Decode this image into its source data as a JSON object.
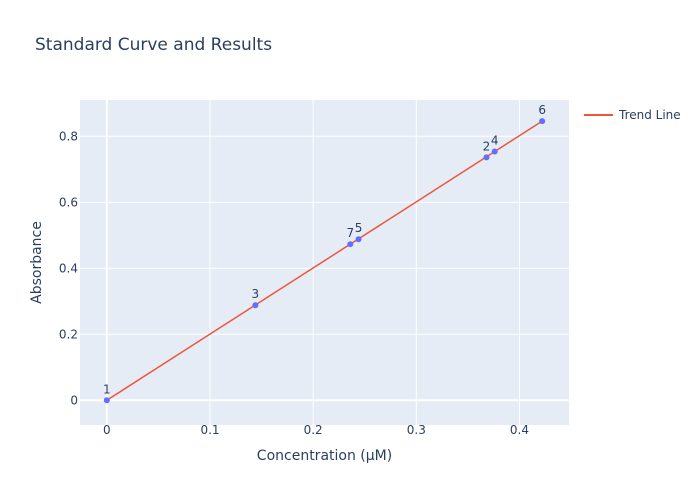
{
  "chart_data": {
    "type": "scatter",
    "title": "Standard Curve and Results",
    "xlabel": "Concentration (µM)",
    "ylabel": "Absorbance",
    "xlim": [
      -0.026,
      0.448
    ],
    "ylim": [
      -0.075,
      0.91
    ],
    "xticks": [
      0,
      0.1,
      0.2,
      0.3,
      0.4
    ],
    "xtick_labels": [
      "0",
      "0.1",
      "0.2",
      "0.3",
      "0.4"
    ],
    "yticks": [
      0,
      0.2,
      0.4,
      0.6,
      0.8
    ],
    "ytick_labels": [
      "0",
      "0.2",
      "0.4",
      "0.6",
      "0.8"
    ],
    "grid": true,
    "legend_position": "top-right",
    "series": [
      {
        "name": "",
        "mode": "markers+text",
        "color": "#636efa",
        "points": [
          {
            "label": "1",
            "x": 0.0,
            "y": 0.0
          },
          {
            "label": "3",
            "x": 0.144,
            "y": 0.288
          },
          {
            "label": "7",
            "x": 0.236,
            "y": 0.473
          },
          {
            "label": "5",
            "x": 0.244,
            "y": 0.488
          },
          {
            "label": "2",
            "x": 0.368,
            "y": 0.736
          },
          {
            "label": "4",
            "x": 0.376,
            "y": 0.754
          },
          {
            "label": "6",
            "x": 0.422,
            "y": 0.846
          }
        ]
      },
      {
        "name": "Trend Line",
        "mode": "lines",
        "color": "#ef553b",
        "points": [
          {
            "x": 0.0,
            "y": 0.0
          },
          {
            "x": 0.422,
            "y": 0.846
          }
        ]
      }
    ],
    "colors": {
      "plot_background": "#e5ecf6",
      "grid": "#ffffff",
      "text": "#2a3f5f"
    }
  }
}
